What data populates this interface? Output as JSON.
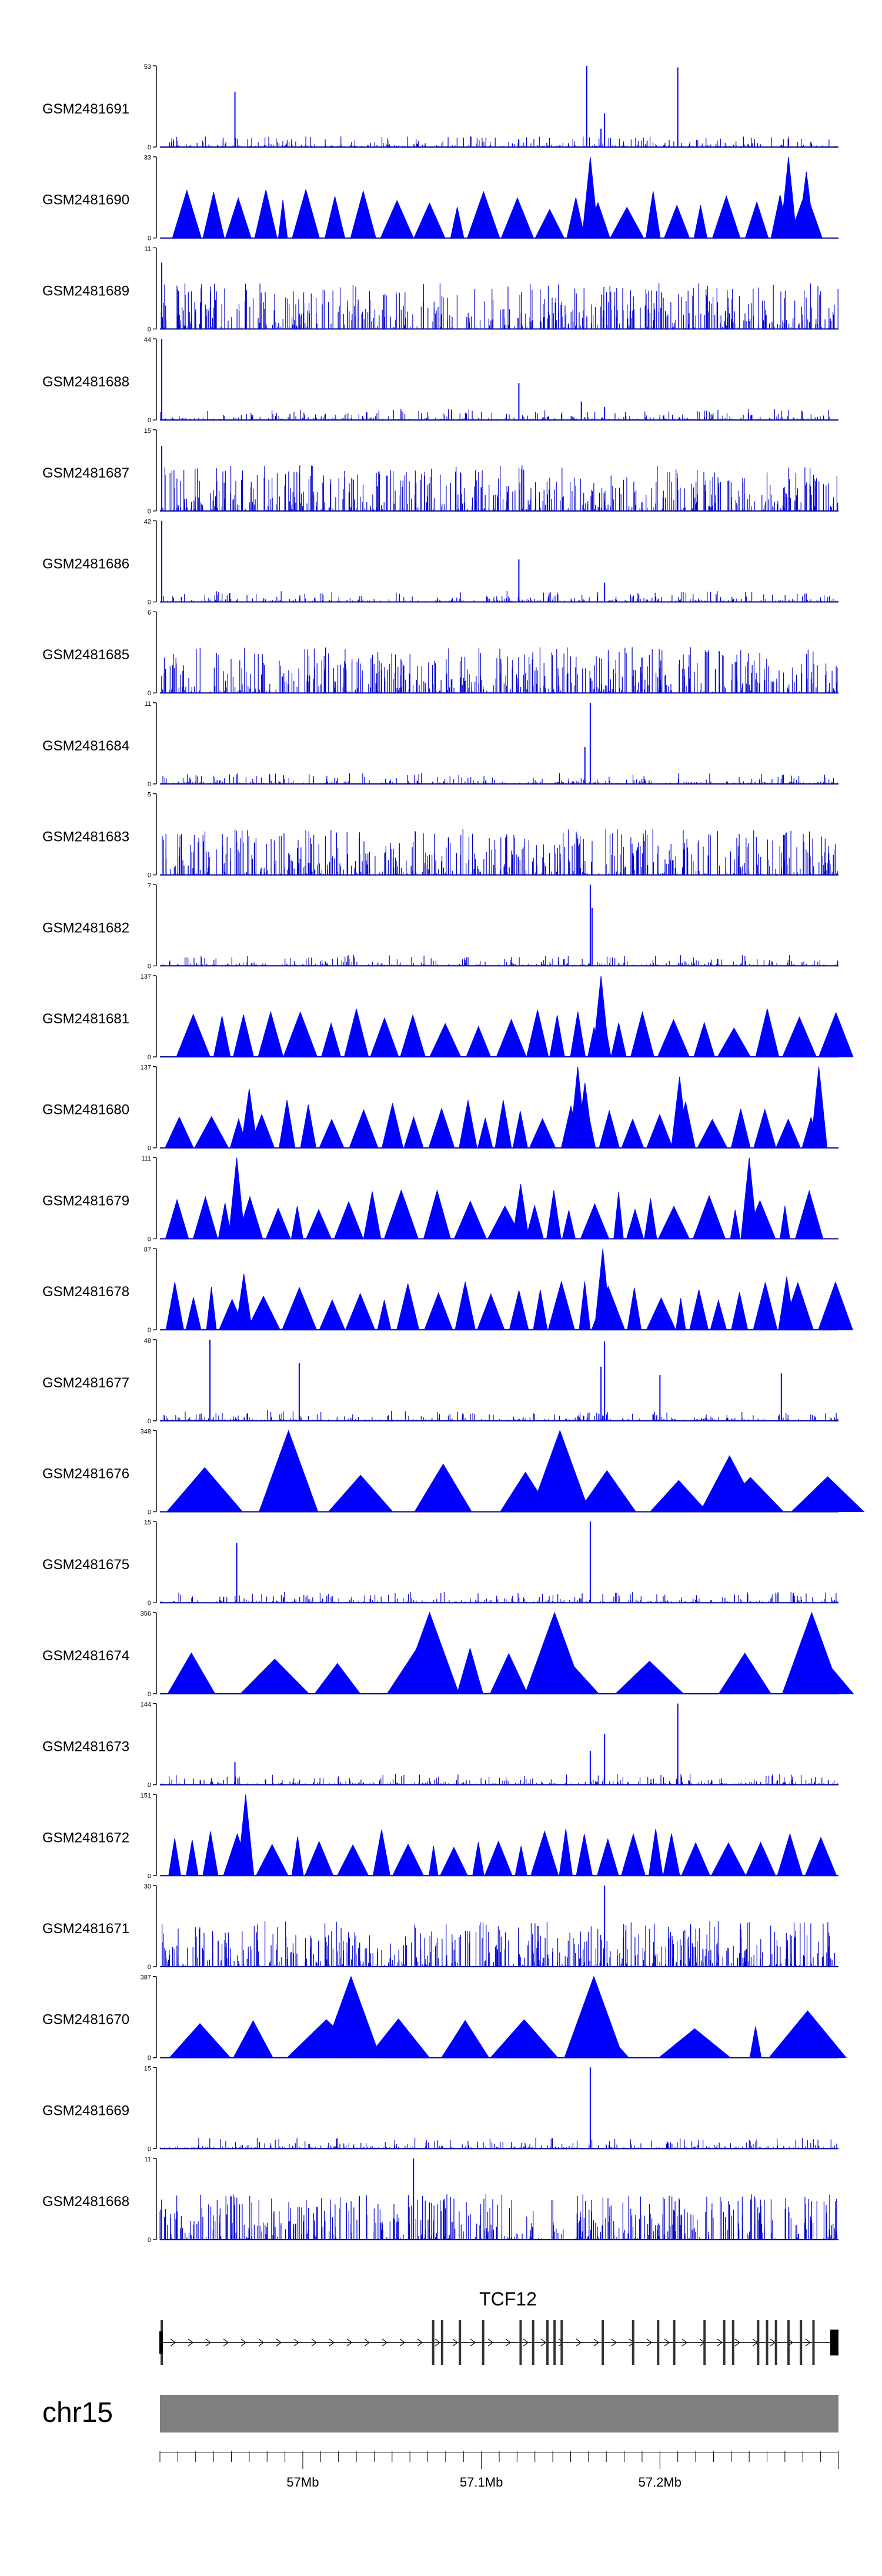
{
  "chart_data": {
    "type": "area",
    "title": "",
    "chromosome": "chr15",
    "gene": "TCF12",
    "x_unit": "Mb",
    "xlim": [
      56.92,
      57.3
    ],
    "x_ticks": [
      {
        "value": 57.0,
        "label": "57Mb"
      },
      {
        "value": 57.1,
        "label": "57.1Mb"
      },
      {
        "value": 57.2,
        "label": "57.2Mb"
      }
    ],
    "colors": {
      "signal": "#0000ff",
      "axis": "#000000",
      "ideogram": "#808080",
      "gene": "#000000"
    },
    "tracks": [
      {
        "name": "GSM2481691",
        "ymax": 53,
        "ymax_label": "53",
        "ymin_label": "0",
        "style": "spikes",
        "peaks": [
          {
            "x": 56.962,
            "y": 36
          },
          {
            "x": 57.159,
            "y": 53
          },
          {
            "x": 57.167,
            "y": 12
          },
          {
            "x": 57.169,
            "y": 22
          },
          {
            "x": 57.21,
            "y": 52
          }
        ]
      },
      {
        "name": "GSM2481690",
        "ymax": 33,
        "ymax_label": "33",
        "ymin_label": "0",
        "style": "triangles",
        "peaks": [
          {
            "x": 57.161,
            "y": 33
          },
          {
            "x": 57.272,
            "y": 33
          },
          {
            "x": 57.282,
            "y": 27
          }
        ]
      },
      {
        "name": "GSM2481689",
        "ymax": 11,
        "ymax_label": "11",
        "ymin_label": "0",
        "style": "dense",
        "peaks": [
          {
            "x": 56.921,
            "y": 9
          }
        ]
      },
      {
        "name": "GSM2481688",
        "ymax": 44,
        "ymax_label": "44",
        "ymin_label": "0",
        "style": "spikes",
        "peaks": [
          {
            "x": 56.921,
            "y": 44
          },
          {
            "x": 57.121,
            "y": 20
          },
          {
            "x": 57.156,
            "y": 10
          },
          {
            "x": 57.169,
            "y": 7
          }
        ]
      },
      {
        "name": "GSM2481687",
        "ymax": 15,
        "ymax_label": "15",
        "ymin_label": "0",
        "style": "dense",
        "peaks": [
          {
            "x": 56.921,
            "y": 12
          }
        ]
      },
      {
        "name": "GSM2481686",
        "ymax": 42,
        "ymax_label": "42",
        "ymin_label": "0",
        "style": "spikes",
        "peaks": [
          {
            "x": 56.921,
            "y": 42
          },
          {
            "x": 57.121,
            "y": 22
          },
          {
            "x": 57.169,
            "y": 10
          }
        ]
      },
      {
        "name": "GSM2481685",
        "ymax": 6,
        "ymax_label": "6",
        "ymin_label": "0",
        "style": "dense",
        "peaks": []
      },
      {
        "name": "GSM2481684",
        "ymax": 11,
        "ymax_label": "11",
        "ymin_label": "0",
        "style": "spikes",
        "peaks": [
          {
            "x": 57.161,
            "y": 11
          },
          {
            "x": 57.158,
            "y": 5
          }
        ]
      },
      {
        "name": "GSM2481683",
        "ymax": 5,
        "ymax_label": "5",
        "ymin_label": "0",
        "style": "dense",
        "peaks": []
      },
      {
        "name": "GSM2481682",
        "ymax": 7,
        "ymax_label": "7",
        "ymin_label": "0",
        "style": "spikes",
        "peaks": [
          {
            "x": 57.161,
            "y": 7
          },
          {
            "x": 57.162,
            "y": 5
          }
        ]
      },
      {
        "name": "GSM2481681",
        "ymax": 137,
        "ymax_label": "137",
        "ymin_label": "0",
        "style": "triangles",
        "peaks": [
          {
            "x": 57.167,
            "y": 137
          }
        ]
      },
      {
        "name": "GSM2481680",
        "ymax": 137,
        "ymax_label": "137",
        "ymin_label": "0",
        "style": "triangles",
        "peaks": [
          {
            "x": 56.97,
            "y": 100
          },
          {
            "x": 57.154,
            "y": 137
          },
          {
            "x": 57.158,
            "y": 110
          },
          {
            "x": 57.211,
            "y": 120
          },
          {
            "x": 57.289,
            "y": 137
          }
        ]
      },
      {
        "name": "GSM2481679",
        "ymax": 111,
        "ymax_label": "111",
        "ymin_label": "0",
        "style": "triangles",
        "peaks": [
          {
            "x": 56.963,
            "y": 111
          },
          {
            "x": 57.122,
            "y": 75
          },
          {
            "x": 57.25,
            "y": 111
          }
        ]
      },
      {
        "name": "GSM2481678",
        "ymax": 87,
        "ymax_label": "87",
        "ymin_label": "0",
        "style": "triangles",
        "peaks": [
          {
            "x": 57.168,
            "y": 87
          },
          {
            "x": 56.967,
            "y": 60
          },
          {
            "x": 57.271,
            "y": 57
          }
        ]
      },
      {
        "name": "GSM2481677",
        "ymax": 48,
        "ymax_label": "48",
        "ymin_label": "0",
        "style": "spikes",
        "peaks": [
          {
            "x": 56.948,
            "y": 48
          },
          {
            "x": 56.998,
            "y": 34
          },
          {
            "x": 57.169,
            "y": 47
          },
          {
            "x": 57.167,
            "y": 32
          },
          {
            "x": 57.2,
            "y": 27
          },
          {
            "x": 57.268,
            "y": 28
          }
        ]
      },
      {
        "name": "GSM2481676",
        "ymax": 348,
        "ymax_label": "348",
        "ymin_label": "0",
        "style": "triangles",
        "peaks": [
          {
            "x": 57.144,
            "y": 348
          },
          {
            "x": 56.992,
            "y": 348
          },
          {
            "x": 57.239,
            "y": 240
          }
        ]
      },
      {
        "name": "GSM2481675",
        "ymax": 15,
        "ymax_label": "15",
        "ymin_label": "0",
        "style": "spikes",
        "peaks": [
          {
            "x": 57.161,
            "y": 15
          },
          {
            "x": 56.963,
            "y": 11
          }
        ]
      },
      {
        "name": "GSM2481674",
        "ymax": 356,
        "ymax_label": "356",
        "ymin_label": "0",
        "style": "triangles",
        "peaks": [
          {
            "x": 57.071,
            "y": 356
          },
          {
            "x": 57.141,
            "y": 356
          },
          {
            "x": 57.285,
            "y": 356
          }
        ]
      },
      {
        "name": "GSM2481673",
        "ymax": 144,
        "ymax_label": "144",
        "ymin_label": "0",
        "style": "spikes",
        "peaks": [
          {
            "x": 57.21,
            "y": 144
          },
          {
            "x": 57.169,
            "y": 90
          },
          {
            "x": 57.161,
            "y": 60
          },
          {
            "x": 56.962,
            "y": 40
          }
        ]
      },
      {
        "name": "GSM2481672",
        "ymax": 151,
        "ymax_label": "151",
        "ymin_label": "0",
        "style": "triangles",
        "peaks": [
          {
            "x": 56.968,
            "y": 151
          }
        ]
      },
      {
        "name": "GSM2481671",
        "ymax": 30,
        "ymax_label": "30",
        "ymin_label": "0",
        "style": "dense",
        "peaks": [
          {
            "x": 57.169,
            "y": 30
          }
        ]
      },
      {
        "name": "GSM2481670",
        "ymax": 387,
        "ymax_label": "387",
        "ymin_label": "0",
        "style": "triangles",
        "peaks": [
          {
            "x": 57.027,
            "y": 387
          },
          {
            "x": 57.163,
            "y": 387
          }
        ]
      },
      {
        "name": "GSM2481669",
        "ymax": 15,
        "ymax_label": "15",
        "ymin_label": "0",
        "style": "spikes",
        "peaks": [
          {
            "x": 57.161,
            "y": 15
          }
        ]
      },
      {
        "name": "GSM2481668",
        "ymax": 11,
        "ymax_label": "11",
        "ymin_label": "0",
        "style": "dense",
        "peaks": [
          {
            "x": 57.062,
            "y": 11
          }
        ]
      }
    ]
  }
}
